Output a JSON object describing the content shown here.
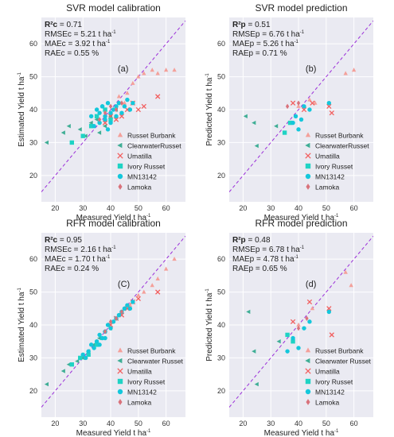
{
  "style": {
    "colors": {
      "background": "#eaeaf2",
      "grid": "#ffffff",
      "diagonal": "#9b30d9",
      "text": "#222222",
      "tick_text": "#333333"
    },
    "markers": {
      "Russet Burbank": {
        "shape": "triangle-up",
        "color": "#f4a09a"
      },
      "Clearwater Russet": {
        "shape": "triangle-left",
        "color": "#3fae95"
      },
      "Umatilla": {
        "shape": "x",
        "color": "#f25f5f"
      },
      "Ivory Russet": {
        "shape": "square",
        "color": "#1fd3c4"
      },
      "MN13142": {
        "shape": "circle",
        "color": "#14c7db"
      },
      "Lamoka": {
        "shape": "diamond",
        "color": "#d9727b"
      }
    }
  },
  "chart_data": [
    {
      "type": "scatter",
      "title": "SVR model calibration",
      "panel_label": "(a)",
      "xlabel": "Measured Yield t ha",
      "xlabel_sup": "-1",
      "ylabel": "Estimated Yield t ha",
      "ylabel_sup": "-1",
      "xlim": [
        15,
        67
      ],
      "ylim": [
        12,
        68
      ],
      "xticks": [
        20,
        30,
        40,
        50,
        60
      ],
      "yticks": [
        20,
        30,
        40,
        50,
        60
      ],
      "grid": true,
      "legend": "bottom-right",
      "identity_line": true,
      "legend_entries": [
        "Russet Burbank",
        "ClearwaterRusset",
        "Umatilla",
        "Ivory Russet",
        "MN13142",
        "Lamoka"
      ],
      "stats": [
        {
          "label": "R²c",
          "value": "= 0.71"
        },
        {
          "label": "RMSEc",
          "value": "= 5.21 t ha",
          "sup": "-1"
        },
        {
          "label": "MAEc",
          "value": "= 3.92 t ha",
          "sup": "-1"
        },
        {
          "label": "RAEc",
          "value": "= 0.55 %"
        }
      ],
      "series": [
        {
          "name": "Russet Burbank",
          "x": [
            46,
            48,
            50,
            52,
            55,
            57,
            60,
            63,
            45,
            43
          ],
          "y": [
            45,
            48,
            50,
            51,
            52,
            51,
            52,
            52,
            42,
            44
          ]
        },
        {
          "name": "Clearwater Russet",
          "x": [
            17,
            23,
            25,
            29,
            31,
            33,
            35,
            36,
            38,
            40,
            42
          ],
          "y": [
            30,
            33,
            35,
            34,
            32,
            36,
            37,
            33,
            35,
            38,
            40
          ]
        },
        {
          "name": "Umatilla",
          "x": [
            40,
            42,
            44,
            46,
            48,
            50,
            52,
            57,
            38
          ],
          "y": [
            38,
            37,
            38,
            40,
            42,
            40,
            41,
            44,
            36
          ]
        },
        {
          "name": "Ivory Russet",
          "x": [
            26,
            30,
            33,
            35,
            38,
            40
          ],
          "y": [
            30,
            32,
            35,
            38,
            40,
            37
          ]
        },
        {
          "name": "MN13142",
          "x": [
            33,
            35,
            36,
            37,
            38,
            39,
            40,
            41,
            42,
            43,
            44,
            45,
            46,
            47,
            48,
            34,
            36,
            38,
            40,
            42,
            37,
            39
          ],
          "y": [
            38,
            40,
            36,
            41,
            38,
            42,
            39,
            40,
            41,
            42,
            39,
            41,
            43,
            40,
            42,
            35,
            39,
            37,
            36,
            38,
            41,
            34
          ]
        },
        {
          "name": "Lamoka",
          "x": [
            38,
            40,
            42,
            36,
            44
          ],
          "y": [
            39,
            41,
            40,
            37,
            42
          ]
        }
      ]
    },
    {
      "type": "scatter",
      "title": "SVR model prediction",
      "panel_label": "(b)",
      "xlabel": "Measured Yield t ha",
      "xlabel_sup": "-1",
      "ylabel": "Predicted Yield t ha",
      "ylabel_sup": "-1",
      "xlim": [
        15,
        67
      ],
      "ylim": [
        12,
        68
      ],
      "xticks": [
        20,
        30,
        40,
        50,
        60
      ],
      "yticks": [
        20,
        30,
        40,
        50,
        60
      ],
      "grid": true,
      "legend": "bottom-right",
      "identity_line": true,
      "legend_entries": [
        "Russet Burbank",
        "ClearwaterRusset",
        "Umatilla",
        "Ivory Russet",
        "MN13142",
        "Lamoka"
      ],
      "stats": [
        {
          "label": "R²p",
          "value": "= 0.51"
        },
        {
          "label": "RMSEp",
          "value": "= 6.76 t ha",
          "sup": "-1"
        },
        {
          "label": "MAEp",
          "value": "= 5.26 t ha",
          "sup": "-1"
        },
        {
          "label": "RAEp",
          "value": "= 0.71 %"
        }
      ],
      "series": [
        {
          "name": "Russet Burbank",
          "x": [
            40,
            44,
            46,
            57,
            60
          ],
          "y": [
            41,
            43,
            42,
            51,
            52
          ]
        },
        {
          "name": "Clearwater Russet",
          "x": [
            21,
            24,
            25,
            32
          ],
          "y": [
            38,
            36,
            29,
            35
          ]
        },
        {
          "name": "Umatilla",
          "x": [
            38,
            42,
            51,
            52,
            45
          ],
          "y": [
            42,
            40,
            41,
            39,
            42
          ]
        },
        {
          "name": "Ivory Russet",
          "x": [
            35,
            37
          ],
          "y": [
            33,
            36
          ]
        },
        {
          "name": "MN13142",
          "x": [
            38,
            40,
            42,
            44,
            51,
            39,
            41
          ],
          "y": [
            36,
            34,
            41,
            40,
            42,
            38,
            37
          ]
        },
        {
          "name": "Lamoka",
          "x": [
            36,
            40
          ],
          "y": [
            41,
            42
          ]
        }
      ]
    },
    {
      "type": "scatter",
      "title": "RFR model calibration",
      "panel_label": "(C)",
      "xlabel": "Measured Yield t ha",
      "xlabel_sup": "-1",
      "ylabel": "Estimated Yield t ha",
      "ylabel_sup": "-1",
      "xlim": [
        15,
        67
      ],
      "ylim": [
        12,
        68
      ],
      "xticks": [
        20,
        30,
        40,
        50,
        60
      ],
      "yticks": [
        20,
        30,
        40,
        50,
        60
      ],
      "grid": true,
      "legend": "bottom-right",
      "identity_line": true,
      "legend_entries": [
        "Russet Burbank",
        "Clearwater  Russet",
        "Umatilla",
        "Ivory Russet",
        "MN13142",
        "Lamoka"
      ],
      "stats": [
        {
          "label": "R²c",
          "value": "= 0.95"
        },
        {
          "label": "RMSEc",
          "value": "= 2.16 t ha",
          "sup": "-1"
        },
        {
          "label": "MAEc",
          "value": "= 1.70  t ha",
          "sup": "-1"
        },
        {
          "label": "RAEc",
          "value": "= 0.24 %"
        }
      ],
      "series": [
        {
          "name": "Russet Burbank",
          "x": [
            45,
            48,
            50,
            52,
            55,
            57,
            60,
            63,
            47
          ],
          "y": [
            45,
            47,
            49,
            50,
            52,
            54,
            57,
            60,
            46
          ]
        },
        {
          "name": "Clearwater Russet",
          "x": [
            17,
            23,
            25,
            28,
            30,
            32,
            34,
            36,
            38,
            40
          ],
          "y": [
            22,
            26,
            28,
            29,
            30,
            32,
            34,
            36,
            38,
            39
          ]
        },
        {
          "name": "Umatilla",
          "x": [
            40,
            42,
            44,
            46,
            48,
            50,
            57
          ],
          "y": [
            40,
            42,
            43,
            45,
            47,
            48,
            50
          ]
        },
        {
          "name": "Ivory Russet",
          "x": [
            26,
            29,
            32,
            35
          ],
          "y": [
            28,
            30,
            31,
            34
          ]
        },
        {
          "name": "MN13142",
          "x": [
            32,
            33,
            34,
            35,
            36,
            37,
            38,
            39,
            40,
            41,
            42,
            43,
            44,
            45,
            46,
            47,
            48,
            30,
            31,
            36,
            38
          ],
          "y": [
            32,
            34,
            33,
            35,
            37,
            36,
            38,
            40,
            39,
            41,
            42,
            43,
            44,
            45,
            46,
            45,
            47,
            31,
            30,
            34,
            36
          ]
        },
        {
          "name": "Lamoka",
          "x": [
            38,
            40,
            42,
            44
          ],
          "y": [
            38,
            41,
            42,
            44
          ]
        }
      ]
    },
    {
      "type": "scatter",
      "title": "RFR model prediction",
      "panel_label": "(d)",
      "xlabel": "Measured Yield t ha",
      "xlabel_sup": "-1",
      "ylabel": "Predicted Yield t ha",
      "ylabel_sup": "-1",
      "xlim": [
        15,
        67
      ],
      "ylim": [
        12,
        68
      ],
      "xticks": [
        20,
        30,
        40,
        50,
        60
      ],
      "yticks": [
        20,
        30,
        40,
        50,
        60
      ],
      "grid": true,
      "legend": "bottom-right",
      "identity_line": true,
      "legend_entries": [
        "Russet Burbank",
        "Clearwater  Russet",
        "Umatilla",
        "Ivory Russet",
        "MN13142",
        "Lamoka"
      ],
      "stats": [
        {
          "label": "R²p",
          "value": "= 0.48"
        },
        {
          "label": "RMSEp",
          "value": "= 6.78 t ha",
          "sup": "-1"
        },
        {
          "label": "MAEp",
          "value": "= 4.78 t ha",
          "sup": "-1"
        },
        {
          "label": "RAEp",
          "value": "= 0.65 %"
        }
      ],
      "series": [
        {
          "name": "Russet Burbank",
          "x": [
            40,
            45,
            57,
            59
          ],
          "y": [
            40,
            45,
            56,
            52
          ]
        },
        {
          "name": "Clearwater Russet",
          "x": [
            22,
            24,
            25,
            33
          ],
          "y": [
            44,
            32,
            22,
            35
          ]
        },
        {
          "name": "Umatilla",
          "x": [
            38,
            44,
            51,
            52
          ],
          "y": [
            41,
            47,
            45,
            37
          ]
        },
        {
          "name": "Ivory Russet",
          "x": [
            36,
            38
          ],
          "y": [
            37,
            35
          ]
        },
        {
          "name": "MN13142",
          "x": [
            36,
            38,
            40,
            42,
            44,
            51
          ],
          "y": [
            32,
            36,
            33,
            39,
            41,
            44
          ]
        },
        {
          "name": "Lamoka",
          "x": [
            40,
            43
          ],
          "y": [
            39,
            42
          ]
        }
      ]
    }
  ]
}
